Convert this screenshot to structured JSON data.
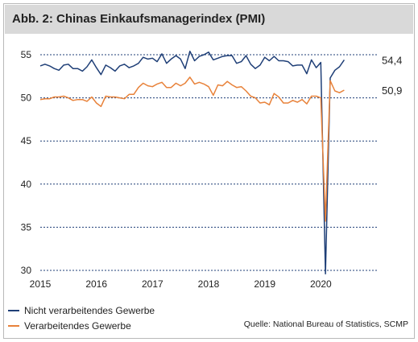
{
  "chart_data": {
    "type": "line",
    "title": "Abb. 2: Chinas Einkaufsmanagerindex (PMI)",
    "xlabel": "",
    "ylabel": "",
    "x_ticks": [
      "2015",
      "2016",
      "2017",
      "2018",
      "2019",
      "2020"
    ],
    "y_ticks": [
      "30",
      "35",
      "40",
      "45",
      "50",
      "55"
    ],
    "xlim": [
      2015.0,
      2021.0
    ],
    "ylim": [
      30,
      55
    ],
    "grid": "horizontal-dotted",
    "legend_position": "bottom-left",
    "series": [
      {
        "name": "Nicht verarbeitendes Gewerbe",
        "color": "#1f3f77",
        "end_label": "54,4",
        "values": [
          53.7,
          53.9,
          53.7,
          53.4,
          53.2,
          53.8,
          53.9,
          53.4,
          53.4,
          53.1,
          53.6,
          54.4,
          53.5,
          52.7,
          53.8,
          53.5,
          53.1,
          53.7,
          53.9,
          53.5,
          53.7,
          54.0,
          54.7,
          54.5,
          54.6,
          54.2,
          55.1,
          54.0,
          54.5,
          54.9,
          54.5,
          53.4,
          55.4,
          54.3,
          54.8,
          55.0,
          55.3,
          54.4,
          54.6,
          54.8,
          54.9,
          54.9,
          54.0,
          54.2,
          54.9,
          53.9,
          53.4,
          53.8,
          54.7,
          54.3,
          54.8,
          54.3,
          54.3,
          54.2,
          53.7,
          53.8,
          53.8,
          52.8,
          54.4,
          53.5,
          54.1,
          29.6,
          52.3,
          53.2,
          53.6,
          54.4
        ],
        "x": [
          2015.0,
          2015.083,
          2015.167,
          2015.25,
          2015.333,
          2015.417,
          2015.5,
          2015.583,
          2015.667,
          2015.75,
          2015.833,
          2015.917,
          2016.0,
          2016.083,
          2016.167,
          2016.25,
          2016.333,
          2016.417,
          2016.5,
          2016.583,
          2016.667,
          2016.75,
          2016.833,
          2016.917,
          2017.0,
          2017.083,
          2017.167,
          2017.25,
          2017.333,
          2017.417,
          2017.5,
          2017.583,
          2017.667,
          2017.75,
          2017.833,
          2017.917,
          2018.0,
          2018.083,
          2018.167,
          2018.25,
          2018.333,
          2018.417,
          2018.5,
          2018.583,
          2018.667,
          2018.75,
          2018.833,
          2018.917,
          2019.0,
          2019.083,
          2019.167,
          2019.25,
          2019.333,
          2019.417,
          2019.5,
          2019.583,
          2019.667,
          2019.75,
          2019.833,
          2019.917,
          2020.0,
          2020.083,
          2020.167,
          2020.25,
          2020.333,
          2020.417
        ]
      },
      {
        "name": "Verarbeitendes Gewerbe",
        "color": "#e8823a",
        "end_label": "50,9",
        "values": [
          49.8,
          49.9,
          49.9,
          50.1,
          50.1,
          50.2,
          50.0,
          49.7,
          49.8,
          49.8,
          49.6,
          50.1,
          49.4,
          49.0,
          50.2,
          50.1,
          50.1,
          50.0,
          49.9,
          50.4,
          50.4,
          51.2,
          51.7,
          51.4,
          51.3,
          51.6,
          51.8,
          51.2,
          51.2,
          51.7,
          51.4,
          51.7,
          52.4,
          51.6,
          51.8,
          51.6,
          51.3,
          50.3,
          51.5,
          51.4,
          51.9,
          51.5,
          51.2,
          51.3,
          50.8,
          50.2,
          50.0,
          49.4,
          49.5,
          49.2,
          50.5,
          50.1,
          49.4,
          49.4,
          49.7,
          49.5,
          49.8,
          49.3,
          50.2,
          50.2,
          50.0,
          35.7,
          52.0,
          50.8,
          50.6,
          50.9
        ],
        "x": [
          2015.0,
          2015.083,
          2015.167,
          2015.25,
          2015.333,
          2015.417,
          2015.5,
          2015.583,
          2015.667,
          2015.75,
          2015.833,
          2015.917,
          2016.0,
          2016.083,
          2016.167,
          2016.25,
          2016.333,
          2016.417,
          2016.5,
          2016.583,
          2016.667,
          2016.75,
          2016.833,
          2016.917,
          2017.0,
          2017.083,
          2017.167,
          2017.25,
          2017.333,
          2017.417,
          2017.5,
          2017.583,
          2017.667,
          2017.75,
          2017.833,
          2017.917,
          2018.0,
          2018.083,
          2018.167,
          2018.25,
          2018.333,
          2018.417,
          2018.5,
          2018.583,
          2018.667,
          2018.75,
          2018.833,
          2018.917,
          2019.0,
          2019.083,
          2019.167,
          2019.25,
          2019.333,
          2019.417,
          2019.5,
          2019.583,
          2019.667,
          2019.75,
          2019.833,
          2019.917,
          2020.0,
          2020.083,
          2020.167,
          2020.25,
          2020.333,
          2020.417
        ]
      }
    ]
  },
  "source": "Quelle: National Bureau of Statistics, SCMP"
}
